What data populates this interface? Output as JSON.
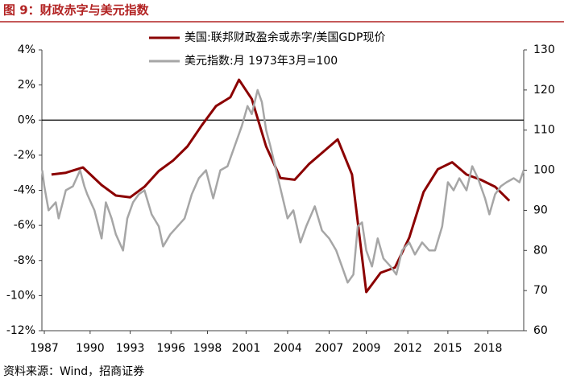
{
  "title": "图 9：财政赤字与美元指数",
  "source": "资料来源：Wind，招商证券",
  "chart_data": {
    "type": "line",
    "xlim": [
      1986.83,
      2020.5
    ],
    "xticks": [
      {
        "value": 1987.0,
        "label": "1987"
      },
      {
        "value": 1990.2,
        "label": "1990"
      },
      {
        "value": 1993.0,
        "label": "1993"
      },
      {
        "value": 1995.85,
        "label": "1996"
      },
      {
        "value": 1998.4,
        "label": "1998"
      },
      {
        "value": 2001.1,
        "label": "2001"
      },
      {
        "value": 2004.0,
        "label": "2004"
      },
      {
        "value": 2006.9,
        "label": "2007"
      },
      {
        "value": 2009.5,
        "label": "2009"
      },
      {
        "value": 2012.4,
        "label": "2012"
      },
      {
        "value": 2015.2,
        "label": "2015"
      },
      {
        "value": 2018.0,
        "label": "2018"
      }
    ],
    "ylim": [
      -12,
      4
    ],
    "yticks": [
      {
        "value": 4,
        "label": "4%"
      },
      {
        "value": 2,
        "label": "2%"
      },
      {
        "value": 0,
        "label": "0%"
      },
      {
        "value": -2,
        "label": "-2%"
      },
      {
        "value": -4,
        "label": "-4%"
      },
      {
        "value": -6,
        "label": "-6%"
      },
      {
        "value": -8,
        "label": "-8%"
      },
      {
        "value": -10,
        "label": "-10%"
      },
      {
        "value": -12,
        "label": "-12%"
      }
    ],
    "y2lim": [
      60,
      130
    ],
    "y2ticks": [
      130,
      120,
      110,
      100,
      90,
      80,
      70,
      60
    ],
    "series": [
      {
        "name": "美国:联邦财政盈余或赤字/美国GDP现价",
        "color": "#8b0000",
        "x": [
          1987.5,
          1988.5,
          1989.7,
          1991,
          1992,
          1993,
          1994,
          1995,
          1996,
          1997,
          1998,
          1999,
          2000,
          2000.6,
          2001.5,
          2002.5,
          2003.5,
          2004.5,
          2005.5,
          2006.5,
          2007.5,
          2008.5,
          2009.5,
          2010.5,
          2011.5,
          2012.5,
          2013.5,
          2014.5,
          2015.5,
          2016.5,
          2017.5,
          2018.5,
          2019.5
        ],
        "values": [
          -3.1,
          -3.0,
          -2.7,
          -3.7,
          -4.3,
          -4.4,
          -3.8,
          -2.9,
          -2.3,
          -1.5,
          -0.3,
          0.8,
          1.3,
          2.3,
          1.2,
          -1.5,
          -3.3,
          -3.4,
          -2.5,
          -1.8,
          -1.1,
          -3.1,
          -9.8,
          -8.7,
          -8.4,
          -6.7,
          -4.1,
          -2.8,
          -2.4,
          -3.1,
          -3.4,
          -3.8,
          -4.6
        ]
      },
      {
        "name": "美元指数:月 1973年3月=100",
        "color": "#a6a6a6",
        "axis": "y2",
        "x": [
          1986.85,
          1987.0,
          1987.3,
          1987.8,
          1988.0,
          1988.5,
          1989.0,
          1989.5,
          1989.8,
          1990.0,
          1990.5,
          1991.0,
          1991.3,
          1991.7,
          1992.0,
          1992.5,
          1992.8,
          1993.2,
          1993.6,
          1994.0,
          1994.5,
          1995.0,
          1995.3,
          1995.8,
          1996.3,
          1996.8,
          1997.3,
          1997.8,
          1998.3,
          1998.8,
          1999.3,
          1999.8,
          2000.3,
          2000.8,
          2001.2,
          2001.5,
          2001.9,
          2002.2,
          2002.5,
          2002.8,
          2003.2,
          2003.6,
          2004.0,
          2004.4,
          2004.9,
          2005.3,
          2005.9,
          2006.4,
          2006.9,
          2007.4,
          2007.9,
          2008.2,
          2008.6,
          2008.9,
          2009.2,
          2009.5,
          2009.9,
          2010.3,
          2010.7,
          2011.2,
          2011.6,
          2012.0,
          2012.5,
          2012.9,
          2013.4,
          2013.9,
          2014.3,
          2014.8,
          2015.2,
          2015.6,
          2016.0,
          2016.5,
          2016.9,
          2017.3,
          2017.8,
          2018.1,
          2018.5,
          2018.9,
          2019.3,
          2019.8,
          2020.2,
          2020.5
        ],
        "values": [
          100,
          96,
          90,
          92,
          88,
          95,
          96,
          100,
          96,
          94,
          90,
          83,
          92,
          88,
          84,
          80,
          88,
          92,
          94,
          95,
          89,
          86,
          81,
          84,
          86,
          88,
          94,
          98,
          100,
          93,
          100,
          101,
          106,
          111,
          116,
          114,
          120,
          117,
          110,
          106,
          100,
          94,
          88,
          90,
          82,
          86,
          91,
          85,
          83,
          80,
          75,
          72,
          74,
          86,
          87,
          80,
          76,
          83,
          78,
          76,
          74,
          80,
          82,
          79,
          82,
          80,
          80,
          86,
          97,
          95,
          98,
          95,
          101,
          98,
          93,
          89,
          94,
          96,
          97,
          98,
          97,
          100
        ]
      }
    ],
    "legend": "upper-left"
  }
}
